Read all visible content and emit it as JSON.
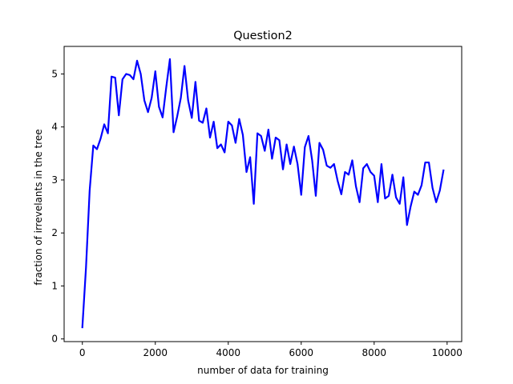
{
  "chart_data": {
    "type": "line",
    "title": "Question2",
    "xlabel": "number of data for training",
    "ylabel": "fraction of irrevelants in the tree",
    "xlim": [
      -500,
      10400
    ],
    "ylim": [
      -0.05,
      5.52
    ],
    "xticks": [
      0,
      2000,
      4000,
      6000,
      8000,
      10000
    ],
    "yticks": [
      0,
      1,
      2,
      3,
      4,
      5
    ],
    "xtick_labels": [
      "0",
      "2000",
      "4000",
      "6000",
      "8000",
      "10000"
    ],
    "ytick_labels": [
      "0",
      "1",
      "2",
      "3",
      "4",
      "5"
    ],
    "grid": false,
    "series": [
      {
        "color": "#0000ff",
        "x": [
          0,
          100,
          200,
          300,
          400,
          500,
          600,
          700,
          800,
          900,
          1000,
          1100,
          1200,
          1300,
          1400,
          1500,
          1600,
          1700,
          1800,
          1900,
          2000,
          2100,
          2200,
          2300,
          2400,
          2500,
          2600,
          2700,
          2800,
          2900,
          3000,
          3100,
          3200,
          3300,
          3400,
          3500,
          3600,
          3700,
          3800,
          3900,
          4000,
          4100,
          4200,
          4300,
          4400,
          4500,
          4600,
          4700,
          4800,
          4900,
          5000,
          5100,
          5200,
          5300,
          5400,
          5500,
          5600,
          5700,
          5800,
          5900,
          6000,
          6100,
          6200,
          6300,
          6400,
          6500,
          6600,
          6700,
          6800,
          6900,
          7000,
          7100,
          7200,
          7300,
          7400,
          7500,
          7600,
          7700,
          7800,
          7900,
          8000,
          8100,
          8200,
          8300,
          8400,
          8500,
          8600,
          8700,
          8800,
          8900,
          9000,
          9100,
          9200,
          9300,
          9400,
          9500,
          9600,
          9700,
          9800,
          9900
        ],
        "values": [
          0.22,
          1.35,
          2.8,
          3.65,
          3.58,
          3.78,
          4.05,
          3.88,
          4.95,
          4.93,
          4.22,
          4.9,
          5.0,
          4.98,
          4.9,
          5.25,
          5.0,
          4.5,
          4.28,
          4.55,
          5.05,
          4.38,
          4.18,
          4.75,
          5.28,
          3.9,
          4.2,
          4.55,
          5.15,
          4.5,
          4.17,
          4.85,
          4.12,
          4.08,
          4.35,
          3.8,
          4.1,
          3.6,
          3.67,
          3.52,
          4.1,
          4.03,
          3.7,
          4.15,
          3.85,
          3.15,
          3.43,
          2.55,
          3.88,
          3.83,
          3.55,
          3.95,
          3.4,
          3.8,
          3.75,
          3.2,
          3.67,
          3.3,
          3.63,
          3.3,
          2.72,
          3.62,
          3.83,
          3.37,
          2.7,
          3.7,
          3.57,
          3.27,
          3.23,
          3.3,
          2.98,
          2.73,
          3.15,
          3.1,
          3.37,
          2.88,
          2.58,
          3.22,
          3.3,
          3.15,
          3.08,
          2.58,
          3.3,
          2.65,
          2.7,
          3.1,
          2.67,
          2.55,
          3.05,
          2.15,
          2.5,
          2.78,
          2.72,
          2.9,
          3.33,
          3.33,
          2.85,
          2.58,
          2.8,
          3.18
        ]
      }
    ]
  }
}
